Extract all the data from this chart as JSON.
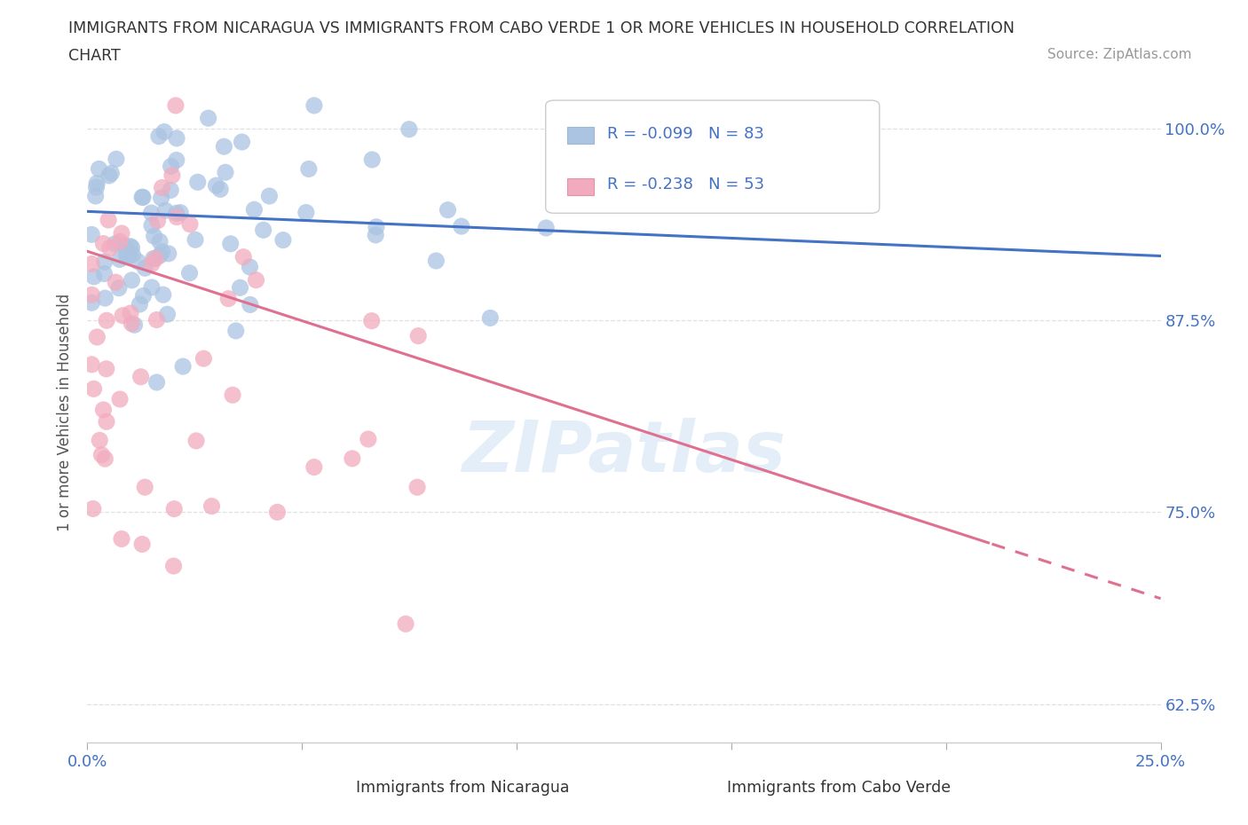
{
  "title_line1": "IMMIGRANTS FROM NICARAGUA VS IMMIGRANTS FROM CABO VERDE 1 OR MORE VEHICLES IN HOUSEHOLD CORRELATION",
  "title_line2": "CHART",
  "source": "Source: ZipAtlas.com",
  "ylabel": "1 or more Vehicles in Household",
  "xlim": [
    0.0,
    0.25
  ],
  "ylim": [
    0.6,
    1.03
  ],
  "xtick_positions": [
    0.0,
    0.05,
    0.1,
    0.15,
    0.2,
    0.25
  ],
  "xtick_labels": [
    "0.0%",
    "",
    "",
    "",
    "",
    "25.0%"
  ],
  "ytick_positions": [
    0.625,
    0.75,
    0.875,
    1.0
  ],
  "ytick_labels": [
    "62.5%",
    "75.0%",
    "87.5%",
    "100.0%"
  ],
  "nicaragua_color": "#aac4e2",
  "cabo_verde_color": "#f2abbe",
  "trend_nicaragua_color": "#4472c4",
  "trend_cabo_verde_color": "#e07090",
  "R_nicaragua": -0.099,
  "N_nicaragua": 83,
  "R_cabo_verde": -0.238,
  "N_cabo_verde": 53,
  "background_color": "#ffffff",
  "grid_color": "#dddddd",
  "watermark": "ZIPatlas",
  "tick_color": "#4472c4",
  "label_color": "#555555",
  "legend_text_color": "#4472c4"
}
